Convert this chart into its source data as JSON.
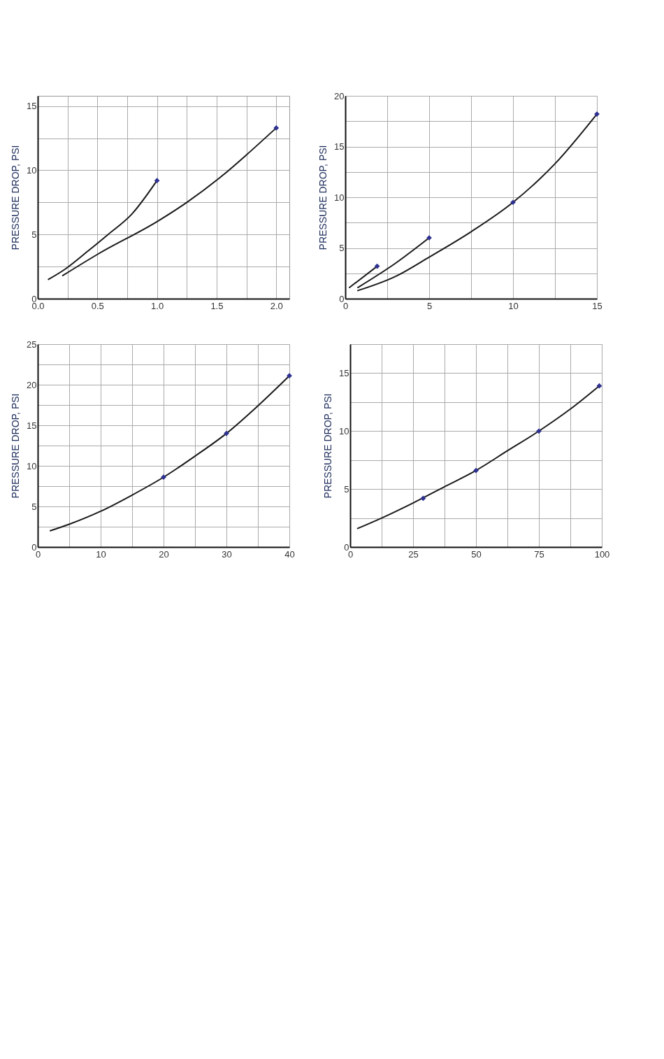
{
  "chart_data": [
    {
      "type": "line",
      "ylabel": "PRESSURE DROP, PSI",
      "grid": true,
      "xlim": [
        0,
        2.11
      ],
      "xticks": [
        {
          "value": 0,
          "label": "0.0"
        },
        {
          "value": 0.25,
          "label": null
        },
        0.5,
        {
          "value": 0.75,
          "label": null
        },
        {
          "value": 1,
          "label": "1.0"
        },
        {
          "value": 1.25,
          "label": null
        },
        1.5,
        {
          "value": 1.75,
          "label": null
        },
        {
          "value": 2,
          "label": "2.0"
        }
      ],
      "ylim": [
        0,
        15.8
      ],
      "yticks": [
        0,
        {
          "value": 2.5,
          "label": null
        },
        5,
        {
          "value": 7.5,
          "label": null
        },
        10,
        {
          "value": 12.5,
          "label": null
        },
        15
      ],
      "series": [
        {
          "color": "#1a1a1a",
          "x": [
            0.09,
            0.23,
            0.42,
            0.59,
            0.79,
            1.0
          ],
          "values": [
            1.5,
            2.3,
            3.7,
            5.0,
            6.6,
            9.2
          ]
        },
        {
          "color": "#1a1a1a",
          "x": [
            0.21,
            0.51,
            1.0,
            1.25,
            1.55,
            1.75,
            2.0
          ],
          "values": [
            1.8,
            3.5,
            6.0,
            7.5,
            9.6,
            11.2,
            13.3
          ]
        },
        {
          "type": "scatter",
          "marker": "diamond",
          "color": "#2e3192",
          "x": [
            1.0,
            2.0
          ],
          "values": [
            9.2,
            13.3
          ]
        }
      ]
    },
    {
      "type": "line",
      "ylabel": "PRESSURE DROP, PSI",
      "grid": true,
      "xlim": [
        0,
        15
      ],
      "xticks": [
        0,
        {
          "value": 2.5,
          "label": null
        },
        5,
        {
          "value": 7.5,
          "label": null
        },
        10,
        {
          "value": 12.5,
          "label": null
        },
        15
      ],
      "ylim": [
        0,
        20
      ],
      "yticks": [
        0,
        {
          "value": 2.5,
          "label": null
        },
        5,
        {
          "value": 7.5,
          "label": null
        },
        10,
        {
          "value": 12.5,
          "label": null
        },
        15,
        {
          "value": 17.5,
          "label": null
        },
        20
      ],
      "series": [
        {
          "color": "#1a1a1a",
          "x": [
            0.25,
            1.9
          ],
          "values": [
            1.1,
            3.2
          ]
        },
        {
          "color": "#1a1a1a",
          "x": [
            0.75,
            3.0,
            5.0
          ],
          "values": [
            1.1,
            3.5,
            6.0
          ]
        },
        {
          "color": "#1a1a1a",
          "x": [
            0.75,
            3.0,
            5.0,
            7.5,
            10.0,
            12.5,
            15.0
          ],
          "values": [
            0.8,
            2.2,
            4.1,
            6.6,
            9.5,
            13.3,
            18.2
          ]
        },
        {
          "type": "scatter",
          "marker": "diamond",
          "color": "#2e3192",
          "x": [
            1.9,
            5.0,
            10.0,
            15.0
          ],
          "values": [
            3.2,
            6.0,
            9.5,
            18.2
          ]
        }
      ]
    },
    {
      "type": "line",
      "ylabel": "PRESSURE DROP, PSI",
      "grid": true,
      "xlim": [
        0,
        40
      ],
      "xticks": [
        0,
        {
          "value": 5,
          "label": null
        },
        10,
        {
          "value": 15,
          "label": null
        },
        20,
        {
          "value": 25,
          "label": null
        },
        30,
        {
          "value": 35,
          "label": null
        },
        40
      ],
      "ylim": [
        0,
        25
      ],
      "yticks": [
        0,
        {
          "value": 2.5,
          "label": null
        },
        5,
        {
          "value": 7.5,
          "label": null
        },
        10,
        {
          "value": 12.5,
          "label": null
        },
        15,
        {
          "value": 17.5,
          "label": null
        },
        20,
        {
          "value": 22.5,
          "label": null
        },
        25
      ],
      "series": [
        {
          "color": "#1a1a1a",
          "x": [
            2,
            5,
            10,
            15,
            20,
            25,
            30,
            35,
            40
          ],
          "values": [
            2.0,
            2.8,
            4.4,
            6.4,
            8.6,
            11.2,
            14.0,
            17.4,
            21.1
          ]
        },
        {
          "type": "scatter",
          "marker": "diamond",
          "color": "#2e3192",
          "x": [
            20,
            30,
            40
          ],
          "values": [
            8.6,
            14.0,
            21.1
          ]
        }
      ]
    },
    {
      "type": "line",
      "ylabel": "PRESSURE DROP, PSI",
      "grid": true,
      "xlim": [
        0,
        100
      ],
      "xticks": [
        0,
        {
          "value": 12.5,
          "label": null
        },
        25,
        {
          "value": 37.5,
          "label": null
        },
        50,
        {
          "value": 62.5,
          "label": null
        },
        75,
        {
          "value": 87.5,
          "label": null
        },
        100
      ],
      "ylim": [
        0,
        17.5
      ],
      "yticks": [
        0,
        {
          "value": 2.5,
          "label": null
        },
        5,
        {
          "value": 7.5,
          "label": null
        },
        10,
        {
          "value": 12.5,
          "label": null
        },
        15,
        {
          "value": 17.5,
          "label": null
        }
      ],
      "series": [
        {
          "color": "#1a1a1a",
          "x": [
            3,
            12.5,
            25,
            37.5,
            50,
            62.5,
            75,
            87.5,
            99
          ],
          "values": [
            1.6,
            2.5,
            3.8,
            5.2,
            6.6,
            8.3,
            10.0,
            11.9,
            13.9
          ]
        },
        {
          "type": "scatter",
          "marker": "diamond",
          "color": "#2e3192",
          "x": [
            29,
            50,
            75,
            99
          ],
          "values": [
            4.2,
            6.6,
            10.0,
            13.9
          ]
        }
      ]
    }
  ]
}
